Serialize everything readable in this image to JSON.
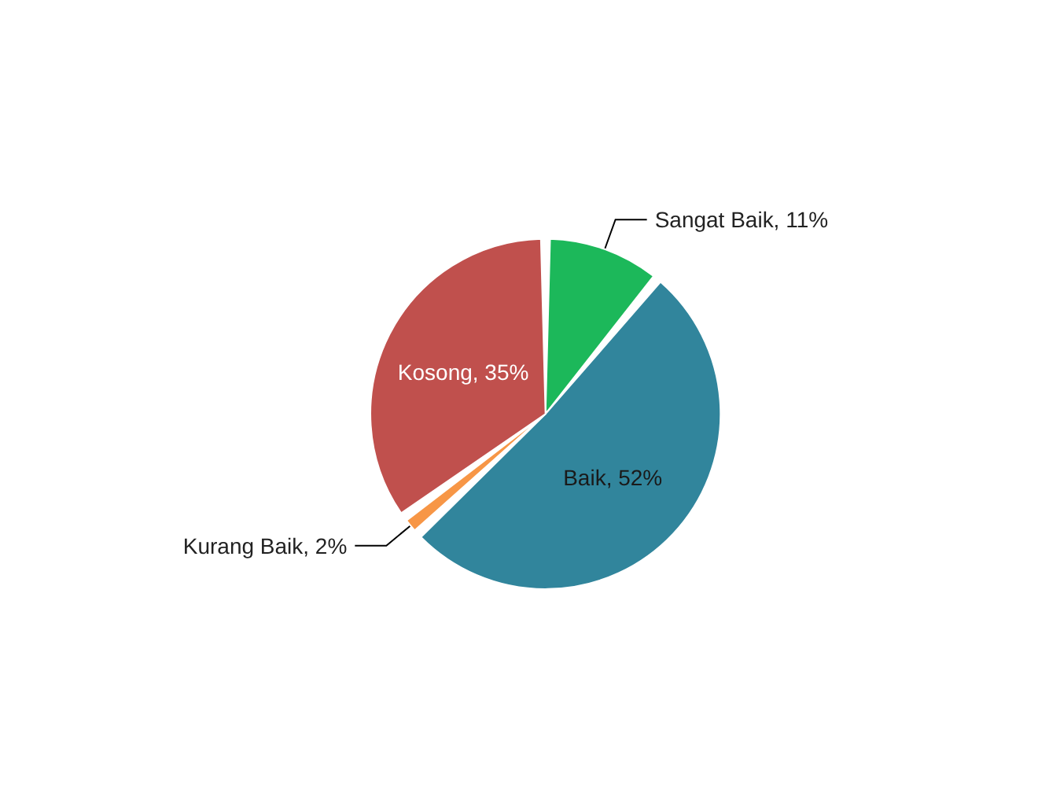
{
  "chart_data": {
    "type": "pie",
    "categories": [
      "Sangat Baik",
      "Baik",
      "Kurang Baik",
      "Kosong"
    ],
    "values": [
      11,
      52,
      2,
      35
    ],
    "value_labels": [
      ", 11%",
      ", 52%",
      ", 2%",
      ", 35%"
    ],
    "colors": [
      "#1cb85a",
      "#31859c",
      "#f79646",
      "#c0504d"
    ],
    "legend": false
  }
}
